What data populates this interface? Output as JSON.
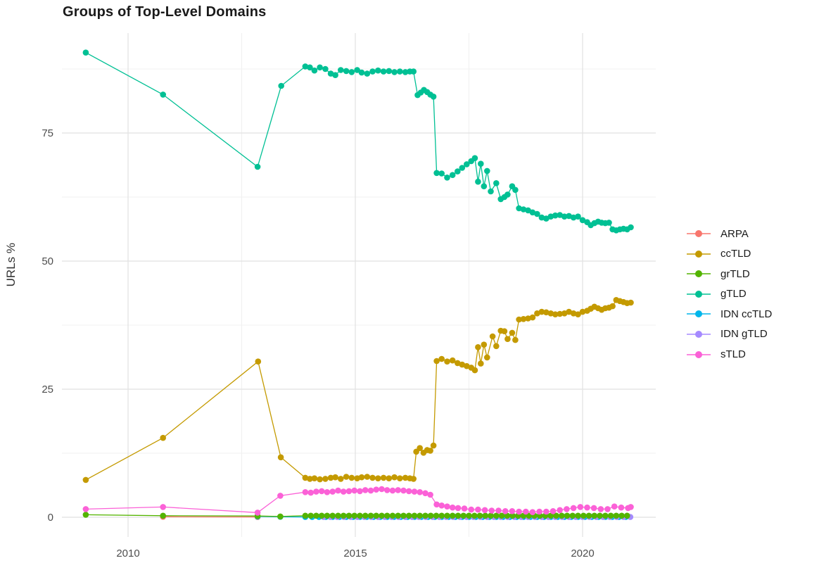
{
  "title": "Groups of Top-Level Domains",
  "axes": {
    "y_label": "URLs %",
    "y_tick_labels": [
      "0",
      "25",
      "50",
      "75"
    ],
    "x_tick_labels": [
      "2010",
      "2015",
      "2020"
    ]
  },
  "legend": {
    "items": [
      {
        "label": "ARPA",
        "color": "#F8766D"
      },
      {
        "label": "ccTLD",
        "color": "#C49A00"
      },
      {
        "label": "grTLD",
        "color": "#53B400"
      },
      {
        "label": "gTLD",
        "color": "#00C094"
      },
      {
        "label": "IDN ccTLD",
        "color": "#00B6EB"
      },
      {
        "label": "IDN gTLD",
        "color": "#A58AFF"
      },
      {
        "label": "sTLD",
        "color": "#FB61D7"
      }
    ]
  },
  "colors": {
    "grid_major": "#e1e1e1",
    "grid_minor": "#f0f0f0",
    "tick_text": "#4d4d4d"
  },
  "chart_data": {
    "type": "line",
    "title": "Groups of Top-Level Domains",
    "xlabel": "",
    "ylabel": "URLs %",
    "xlim": [
      2008.5,
      2021.6
    ],
    "ylim": [
      -3.8,
      93.5
    ],
    "x_ticks": [
      2010,
      2015,
      2020
    ],
    "y_ticks": [
      0,
      25,
      50,
      75
    ],
    "x_minor": [
      2012.5,
      2017.5
    ],
    "y_minor": [
      12.5,
      37.5,
      62.5,
      87.5
    ],
    "grid": true,
    "legend_position": "right",
    "draw_order": [
      "ARPA",
      "IDN ccTLD",
      "IDN gTLD",
      "grTLD",
      "gTLD",
      "ccTLD",
      "sTLD"
    ],
    "series": [
      {
        "name": "ARPA",
        "color": "#F8766D",
        "points": [
          [
            2010.77,
            0.1
          ],
          [
            2012.85,
            0.05
          ]
        ]
      },
      {
        "name": "ccTLD",
        "color": "#C49A00",
        "points": [
          [
            2009.07,
            7.3
          ],
          [
            2010.77,
            15.5
          ],
          [
            2012.86,
            30.4
          ],
          [
            2013.36,
            11.7
          ],
          [
            2013.9,
            7.7
          ],
          [
            2014.0,
            7.5
          ],
          [
            2014.1,
            7.6
          ],
          [
            2014.22,
            7.4
          ],
          [
            2014.34,
            7.5
          ],
          [
            2014.46,
            7.7
          ],
          [
            2014.56,
            7.8
          ],
          [
            2014.68,
            7.5
          ],
          [
            2014.8,
            7.9
          ],
          [
            2014.92,
            7.7
          ],
          [
            2015.04,
            7.6
          ],
          [
            2015.14,
            7.8
          ],
          [
            2015.26,
            7.9
          ],
          [
            2015.38,
            7.7
          ],
          [
            2015.5,
            7.6
          ],
          [
            2015.62,
            7.7
          ],
          [
            2015.74,
            7.6
          ],
          [
            2015.86,
            7.8
          ],
          [
            2015.98,
            7.6
          ],
          [
            2016.1,
            7.7
          ],
          [
            2016.2,
            7.6
          ],
          [
            2016.28,
            7.5
          ],
          [
            2016.34,
            12.8
          ],
          [
            2016.42,
            13.5
          ],
          [
            2016.5,
            12.6
          ],
          [
            2016.58,
            13.1
          ],
          [
            2016.65,
            13.0
          ],
          [
            2016.72,
            14.0
          ],
          [
            2016.79,
            30.5
          ],
          [
            2016.9,
            30.9
          ],
          [
            2017.02,
            30.4
          ],
          [
            2017.14,
            30.6
          ],
          [
            2017.25,
            30.1
          ],
          [
            2017.35,
            29.8
          ],
          [
            2017.45,
            29.5
          ],
          [
            2017.55,
            29.2
          ],
          [
            2017.63,
            28.7
          ],
          [
            2017.7,
            33.2
          ],
          [
            2017.76,
            30.0
          ],
          [
            2017.83,
            33.7
          ],
          [
            2017.9,
            31.2
          ],
          [
            2018.02,
            35.3
          ],
          [
            2018.1,
            33.4
          ],
          [
            2018.2,
            36.4
          ],
          [
            2018.28,
            36.3
          ],
          [
            2018.35,
            34.8
          ],
          [
            2018.45,
            36.0
          ],
          [
            2018.52,
            34.6
          ],
          [
            2018.6,
            38.6
          ],
          [
            2018.7,
            38.7
          ],
          [
            2018.8,
            38.8
          ],
          [
            2018.9,
            39.0
          ],
          [
            2019.0,
            39.8
          ],
          [
            2019.1,
            40.1
          ],
          [
            2019.2,
            40.0
          ],
          [
            2019.3,
            39.8
          ],
          [
            2019.4,
            39.6
          ],
          [
            2019.5,
            39.7
          ],
          [
            2019.6,
            39.8
          ],
          [
            2019.7,
            40.1
          ],
          [
            2019.8,
            39.8
          ],
          [
            2019.9,
            39.6
          ],
          [
            2020.0,
            40.1
          ],
          [
            2020.1,
            40.3
          ],
          [
            2020.18,
            40.7
          ],
          [
            2020.26,
            41.1
          ],
          [
            2020.34,
            40.8
          ],
          [
            2020.42,
            40.5
          ],
          [
            2020.5,
            40.8
          ],
          [
            2020.58,
            40.9
          ],
          [
            2020.66,
            41.2
          ],
          [
            2020.74,
            42.4
          ],
          [
            2020.82,
            42.2
          ],
          [
            2020.9,
            42.0
          ],
          [
            2020.98,
            41.8
          ],
          [
            2021.06,
            41.9
          ]
        ]
      },
      {
        "name": "grTLD",
        "color": "#53B400",
        "points": [
          [
            2009.07,
            0.5
          ],
          [
            2010.77,
            0.3
          ],
          [
            2012.85,
            0.25
          ],
          [
            2013.35,
            0.15
          ]
        ],
        "runs": [
          {
            "from": 2013.9,
            "to": 2021.02,
            "step": 0.12,
            "value": 0.3
          }
        ]
      },
      {
        "name": "gTLD",
        "color": "#00C094",
        "points": [
          [
            2009.07,
            90.7
          ],
          [
            2010.77,
            82.5
          ],
          [
            2012.85,
            68.4
          ],
          [
            2013.37,
            84.2
          ],
          [
            2013.9,
            88.0
          ],
          [
            2014.0,
            87.8
          ],
          [
            2014.1,
            87.2
          ],
          [
            2014.22,
            87.8
          ],
          [
            2014.34,
            87.5
          ],
          [
            2014.46,
            86.6
          ],
          [
            2014.56,
            86.3
          ],
          [
            2014.68,
            87.3
          ],
          [
            2014.8,
            87.1
          ],
          [
            2014.92,
            86.9
          ],
          [
            2015.04,
            87.3
          ],
          [
            2015.14,
            86.8
          ],
          [
            2015.26,
            86.6
          ],
          [
            2015.38,
            87.0
          ],
          [
            2015.5,
            87.2
          ],
          [
            2015.62,
            87.0
          ],
          [
            2015.74,
            87.1
          ],
          [
            2015.86,
            86.9
          ],
          [
            2015.98,
            87.0
          ],
          [
            2016.1,
            86.9
          ],
          [
            2016.2,
            87.0
          ],
          [
            2016.28,
            87.0
          ],
          [
            2016.37,
            82.4
          ],
          [
            2016.44,
            82.9
          ],
          [
            2016.51,
            83.4
          ],
          [
            2016.58,
            83.0
          ],
          [
            2016.65,
            82.5
          ],
          [
            2016.72,
            82.1
          ],
          [
            2016.79,
            67.2
          ],
          [
            2016.9,
            67.1
          ],
          [
            2017.02,
            66.3
          ],
          [
            2017.14,
            66.8
          ],
          [
            2017.25,
            67.5
          ],
          [
            2017.35,
            68.2
          ],
          [
            2017.45,
            68.9
          ],
          [
            2017.55,
            69.5
          ],
          [
            2017.63,
            70.1
          ],
          [
            2017.7,
            65.5
          ],
          [
            2017.76,
            69.0
          ],
          [
            2017.83,
            64.6
          ],
          [
            2017.9,
            67.6
          ],
          [
            2017.98,
            63.6
          ],
          [
            2018.1,
            65.2
          ],
          [
            2018.2,
            62.1
          ],
          [
            2018.28,
            62.5
          ],
          [
            2018.35,
            63.0
          ],
          [
            2018.45,
            64.6
          ],
          [
            2018.52,
            63.9
          ],
          [
            2018.6,
            60.3
          ],
          [
            2018.7,
            60.1
          ],
          [
            2018.8,
            59.9
          ],
          [
            2018.9,
            59.5
          ],
          [
            2019.0,
            59.2
          ],
          [
            2019.1,
            58.5
          ],
          [
            2019.2,
            58.3
          ],
          [
            2019.3,
            58.7
          ],
          [
            2019.4,
            58.9
          ],
          [
            2019.5,
            59.0
          ],
          [
            2019.6,
            58.7
          ],
          [
            2019.7,
            58.8
          ],
          [
            2019.8,
            58.5
          ],
          [
            2019.9,
            58.7
          ],
          [
            2020.0,
            58.0
          ],
          [
            2020.1,
            57.6
          ],
          [
            2020.18,
            57.0
          ],
          [
            2020.26,
            57.4
          ],
          [
            2020.34,
            57.7
          ],
          [
            2020.42,
            57.5
          ],
          [
            2020.5,
            57.4
          ],
          [
            2020.58,
            57.5
          ],
          [
            2020.66,
            56.2
          ],
          [
            2020.74,
            56.0
          ],
          [
            2020.82,
            56.2
          ],
          [
            2020.9,
            56.3
          ],
          [
            2020.98,
            56.2
          ],
          [
            2021.06,
            56.6
          ]
        ]
      },
      {
        "name": "IDN ccTLD",
        "color": "#00B6EB",
        "points": [
          [
            2012.85,
            0.15
          ],
          [
            2013.35,
            0.1
          ]
        ],
        "runs": [
          {
            "from": 2013.9,
            "to": 2021.02,
            "step": 0.15,
            "value": 0.05
          }
        ]
      },
      {
        "name": "IDN gTLD",
        "color": "#A58AFF",
        "points": [],
        "runs": [
          {
            "from": 2014.3,
            "to": 2021.05,
            "step": 0.15,
            "value": 0.05
          }
        ]
      },
      {
        "name": "sTLD",
        "color": "#FB61D7",
        "points": [
          [
            2009.07,
            1.6
          ],
          [
            2010.77,
            2.0
          ],
          [
            2012.85,
            0.9
          ],
          [
            2013.35,
            4.2
          ],
          [
            2013.9,
            4.9
          ],
          [
            2014.02,
            4.8
          ],
          [
            2014.14,
            5.0
          ],
          [
            2014.26,
            5.1
          ],
          [
            2014.38,
            4.9
          ],
          [
            2014.5,
            5.0
          ],
          [
            2014.62,
            5.2
          ],
          [
            2014.74,
            5.0
          ],
          [
            2014.86,
            5.1
          ],
          [
            2014.98,
            5.2
          ],
          [
            2015.1,
            5.1
          ],
          [
            2015.22,
            5.3
          ],
          [
            2015.34,
            5.2
          ],
          [
            2015.46,
            5.4
          ],
          [
            2015.58,
            5.5
          ],
          [
            2015.7,
            5.3
          ],
          [
            2015.82,
            5.2
          ],
          [
            2015.94,
            5.3
          ],
          [
            2016.06,
            5.2
          ],
          [
            2016.18,
            5.1
          ],
          [
            2016.3,
            5.0
          ],
          [
            2016.42,
            4.9
          ],
          [
            2016.54,
            4.7
          ],
          [
            2016.65,
            4.4
          ],
          [
            2016.79,
            2.5
          ],
          [
            2016.9,
            2.3
          ],
          [
            2017.02,
            2.1
          ],
          [
            2017.14,
            1.9
          ],
          [
            2017.26,
            1.8
          ],
          [
            2017.4,
            1.7
          ],
          [
            2017.55,
            1.5
          ],
          [
            2017.7,
            1.5
          ],
          [
            2017.85,
            1.4
          ],
          [
            2018.0,
            1.3
          ],
          [
            2018.15,
            1.3
          ],
          [
            2018.3,
            1.2
          ],
          [
            2018.45,
            1.2
          ],
          [
            2018.6,
            1.1
          ],
          [
            2018.75,
            1.1
          ],
          [
            2018.9,
            1.0
          ],
          [
            2019.05,
            1.1
          ],
          [
            2019.2,
            1.1
          ],
          [
            2019.35,
            1.2
          ],
          [
            2019.5,
            1.4
          ],
          [
            2019.65,
            1.6
          ],
          [
            2019.8,
            1.8
          ],
          [
            2019.95,
            2.0
          ],
          [
            2020.1,
            1.9
          ],
          [
            2020.25,
            1.8
          ],
          [
            2020.4,
            1.6
          ],
          [
            2020.55,
            1.6
          ],
          [
            2020.7,
            2.1
          ],
          [
            2020.85,
            1.9
          ],
          [
            2021.0,
            1.8
          ],
          [
            2021.06,
            2.0
          ]
        ]
      }
    ]
  }
}
